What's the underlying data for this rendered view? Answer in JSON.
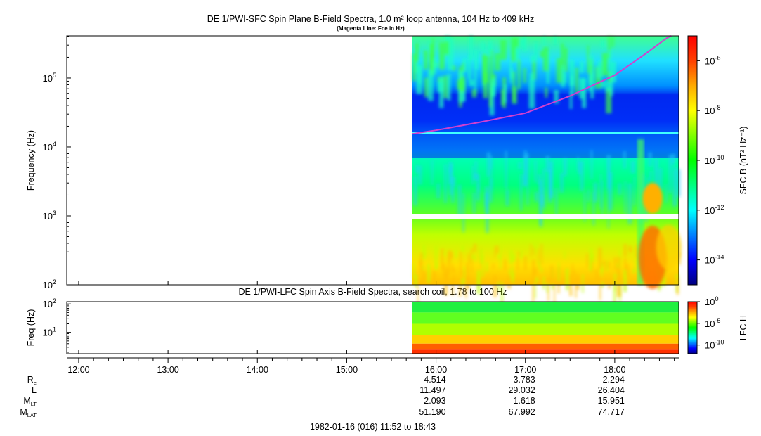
{
  "colors": {
    "background": "#ffffff",
    "axis": "#000000",
    "fce_line": "#d040d0",
    "colormap": [
      "#000080",
      "#0000ff",
      "#0080ff",
      "#00ffff",
      "#00ff80",
      "#00ff00",
      "#80ff00",
      "#ffff00",
      "#ffaa00",
      "#ff4000",
      "#ff0000"
    ]
  },
  "chart_data": [
    {
      "type": "heatmap",
      "title": "DE 1/PWI-SFC  Spin Plane B-Field Spectra, 1.0 m² loop antenna, 104 Hz to 409 kHz",
      "subtitle": "(Magenta Line: Fce in Hz)",
      "ylabel": "Frequency (Hz)",
      "yscale": "log",
      "ylim": [
        100,
        409000
      ],
      "yticks": [
        {
          "value": 100,
          "label": "10",
          "exp": "2"
        },
        {
          "value": 1000,
          "label": "10",
          "exp": "3"
        },
        {
          "value": 10000,
          "label": "10",
          "exp": "4"
        },
        {
          "value": 100000,
          "label": "10",
          "exp": "5"
        }
      ],
      "data_start": "15:44",
      "colorbar": {
        "label": "SFC B (nT² Hz⁻¹)",
        "scale": "log",
        "range": [
          1e-15,
          1e-05
        ],
        "ticks": [
          {
            "value": 1e-06,
            "label": "10",
            "exp": "-6"
          },
          {
            "value": 1e-08,
            "label": "10",
            "exp": "-8"
          },
          {
            "value": 1e-10,
            "label": "10",
            "exp": "-10"
          },
          {
            "value": 1e-12,
            "label": "10",
            "exp": "-12"
          },
          {
            "value": 1e-14,
            "label": "10",
            "exp": "-14"
          }
        ]
      },
      "fce_line": {
        "name": "Fce",
        "points": [
          {
            "t": "15:44",
            "f": 15500
          },
          {
            "t": "16:00",
            "f": 17500
          },
          {
            "t": "16:30",
            "f": 23000
          },
          {
            "t": "17:00",
            "f": 31000
          },
          {
            "t": "17:30",
            "f": 55000
          },
          {
            "t": "18:00",
            "f": 110000
          },
          {
            "t": "18:20",
            "f": 220000
          },
          {
            "t": "18:35",
            "f": 380000
          },
          {
            "t": "18:38",
            "f": 409000
          }
        ]
      }
    },
    {
      "type": "heatmap",
      "title": "DE 1/PWI-LFC  Spin Axis B-Field Spectra, search coil, 1.78 to 100 Hz",
      "ylabel": "Freq (Hz)",
      "yscale": "log",
      "ylim": [
        1.78,
        120
      ],
      "yticks": [
        {
          "value": 10,
          "label": "10",
          "exp": "1"
        },
        {
          "value": 100,
          "label": "10",
          "exp": "2"
        }
      ],
      "colorbar": {
        "label": "LFC H",
        "scale": "log",
        "range": [
          1e-12,
          1
        ],
        "ticks": [
          {
            "value": 1,
            "label": "10",
            "exp": "0"
          },
          {
            "value": 1e-05,
            "label": "10",
            "exp": "-5"
          },
          {
            "value": 1e-10,
            "label": "10",
            "exp": "-10"
          }
        ]
      }
    }
  ],
  "time_axis": {
    "start": "11:52",
    "end": "18:43",
    "ticks": [
      "12:00",
      "13:00",
      "14:00",
      "15:00",
      "16:00",
      "17:00",
      "18:00"
    ]
  },
  "ephemeris": {
    "rows": [
      {
        "label": "R",
        "sub": "e",
        "values": [
          "4.514",
          "3.783",
          "2.294"
        ]
      },
      {
        "label": "L",
        "sub": "",
        "values": [
          "11.497",
          "29.032",
          "26.404"
        ]
      },
      {
        "label": "M",
        "sub": "LT",
        "values": [
          "2.093",
          "1.618",
          "15.951"
        ]
      },
      {
        "label": "M",
        "sub": "LAT",
        "values": [
          "51.190",
          "67.992",
          "74.717"
        ]
      }
    ],
    "times": [
      "16:00",
      "17:00",
      "18:00"
    ]
  },
  "footer": "1982-01-16 (016) 11:52 to 18:43"
}
